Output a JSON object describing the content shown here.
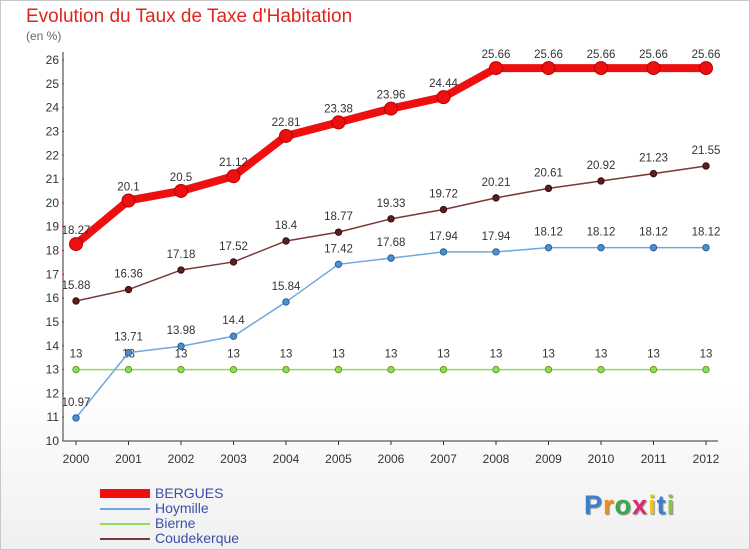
{
  "title": "Evolution du Taux de Taxe d'Habitation",
  "unit": "(en %)",
  "logo": {
    "letters": [
      "P",
      "r",
      "o",
      "x",
      "i",
      "t",
      "i"
    ],
    "colors": [
      "#3a7fd0",
      "#f08a1c",
      "#3aa84a",
      "#e02a6a",
      "#f0c419",
      "#3a7fd0",
      "#8bc34a"
    ]
  },
  "chart_data": {
    "type": "line",
    "x": [
      "2000",
      "2001",
      "2002",
      "2003",
      "2004",
      "2005",
      "2006",
      "2007",
      "2008",
      "2009",
      "2010",
      "2011",
      "2012"
    ],
    "ylim": [
      10,
      26
    ],
    "yticks": [
      "10",
      "11",
      "12",
      "13",
      "14",
      "15",
      "16",
      "17",
      "18",
      "19",
      "20",
      "21",
      "22",
      "23",
      "24",
      "25",
      "26"
    ],
    "grid": false,
    "legend_position": "bottom-left",
    "series": [
      {
        "name": "BERGUES",
        "color": "#ee1010",
        "labels": [
          "18.27",
          "20.1",
          "20.5",
          "21.12",
          "22.81",
          "23.38",
          "23.96",
          "24.44",
          "25.66",
          "25.66",
          "25.66",
          "25.66",
          "25.66"
        ],
        "values": [
          18.27,
          20.1,
          20.5,
          21.12,
          22.81,
          23.38,
          23.96,
          24.44,
          25.66,
          25.66,
          25.66,
          25.66,
          25.66
        ]
      },
      {
        "name": "Hoymille",
        "color": "#6fa8dc",
        "labels": [
          "10.97",
          "13.71",
          "13.98",
          "14.4",
          "15.84",
          "17.42",
          "17.68",
          "17.94",
          "17.94",
          "18.12",
          "18.12",
          "18.12",
          "18.12"
        ],
        "values": [
          10.97,
          13.71,
          13.98,
          14.4,
          15.84,
          17.42,
          17.68,
          17.94,
          17.94,
          18.12,
          18.12,
          18.12,
          18.12
        ]
      },
      {
        "name": "Bierne",
        "color": "#8fdc5a",
        "labels": [
          "13",
          "13",
          "13",
          "13",
          "13",
          "13",
          "13",
          "13",
          "13",
          "13",
          "13",
          "13",
          "13"
        ],
        "values": [
          13,
          13,
          13,
          13,
          13,
          13,
          13,
          13,
          13,
          13,
          13,
          13,
          13
        ]
      },
      {
        "name": "Coudekerque",
        "color": "#7a3838",
        "labels": [
          "15.88",
          "16.36",
          "17.18",
          "17.52",
          "18.4",
          "18.77",
          "19.33",
          "19.72",
          "20.21",
          "20.61",
          "20.92",
          "21.23",
          "21.55"
        ],
        "values": [
          15.88,
          16.36,
          17.18,
          17.52,
          18.4,
          18.77,
          19.33,
          19.72,
          20.21,
          20.61,
          20.92,
          21.23,
          21.55
        ]
      }
    ]
  }
}
